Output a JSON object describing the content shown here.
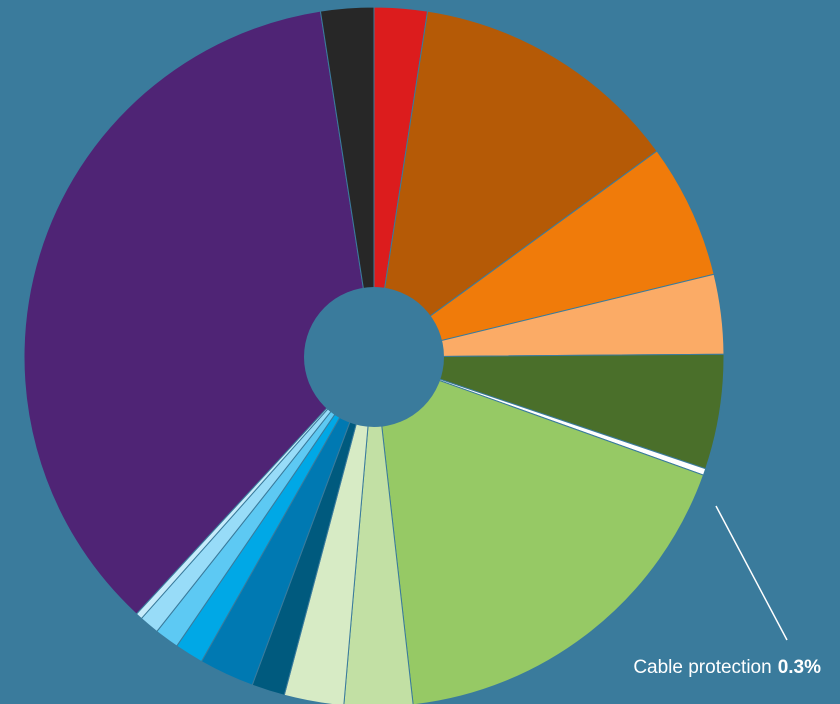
{
  "chart_data": {
    "type": "pie",
    "donut": true,
    "start_angle_deg": 0,
    "direction": "clockwise",
    "background_color": "#3a7b9c",
    "hole_color": "#3a7b9c",
    "slices": [
      {
        "value": 2.4,
        "color": "#dc1c1d"
      },
      {
        "value": 12.3,
        "color": "#b55a06"
      },
      {
        "value": 6.1,
        "color": "#f07b0a"
      },
      {
        "value": 3.6,
        "color": "#fbab66"
      },
      {
        "value": 5.2,
        "color": "#4a6f2a"
      },
      {
        "value": 0.3,
        "color": "#ffffff",
        "label": "Cable protection",
        "value_label": "0.3%"
      },
      {
        "value": 17.4,
        "color": "#96c965"
      },
      {
        "value": 3.1,
        "color": "#c2e0a4"
      },
      {
        "value": 2.7,
        "color": "#d7ebc5"
      },
      {
        "value": 1.5,
        "color": "#005a7e"
      },
      {
        "value": 2.5,
        "color": "#0079b2"
      },
      {
        "value": 1.3,
        "color": "#00a8e6"
      },
      {
        "value": 1.1,
        "color": "#5dc9f3"
      },
      {
        "value": 0.9,
        "color": "#98dcf8"
      },
      {
        "value": 0.3,
        "color": "#c7ecfb"
      },
      {
        "value": 35.0,
        "color": "#4f2475"
      },
      {
        "value": 2.4,
        "color": "#272727"
      }
    ],
    "annotation": {
      "label": "Cable protection",
      "value": "0.3%",
      "color": "#ffffff"
    }
  }
}
